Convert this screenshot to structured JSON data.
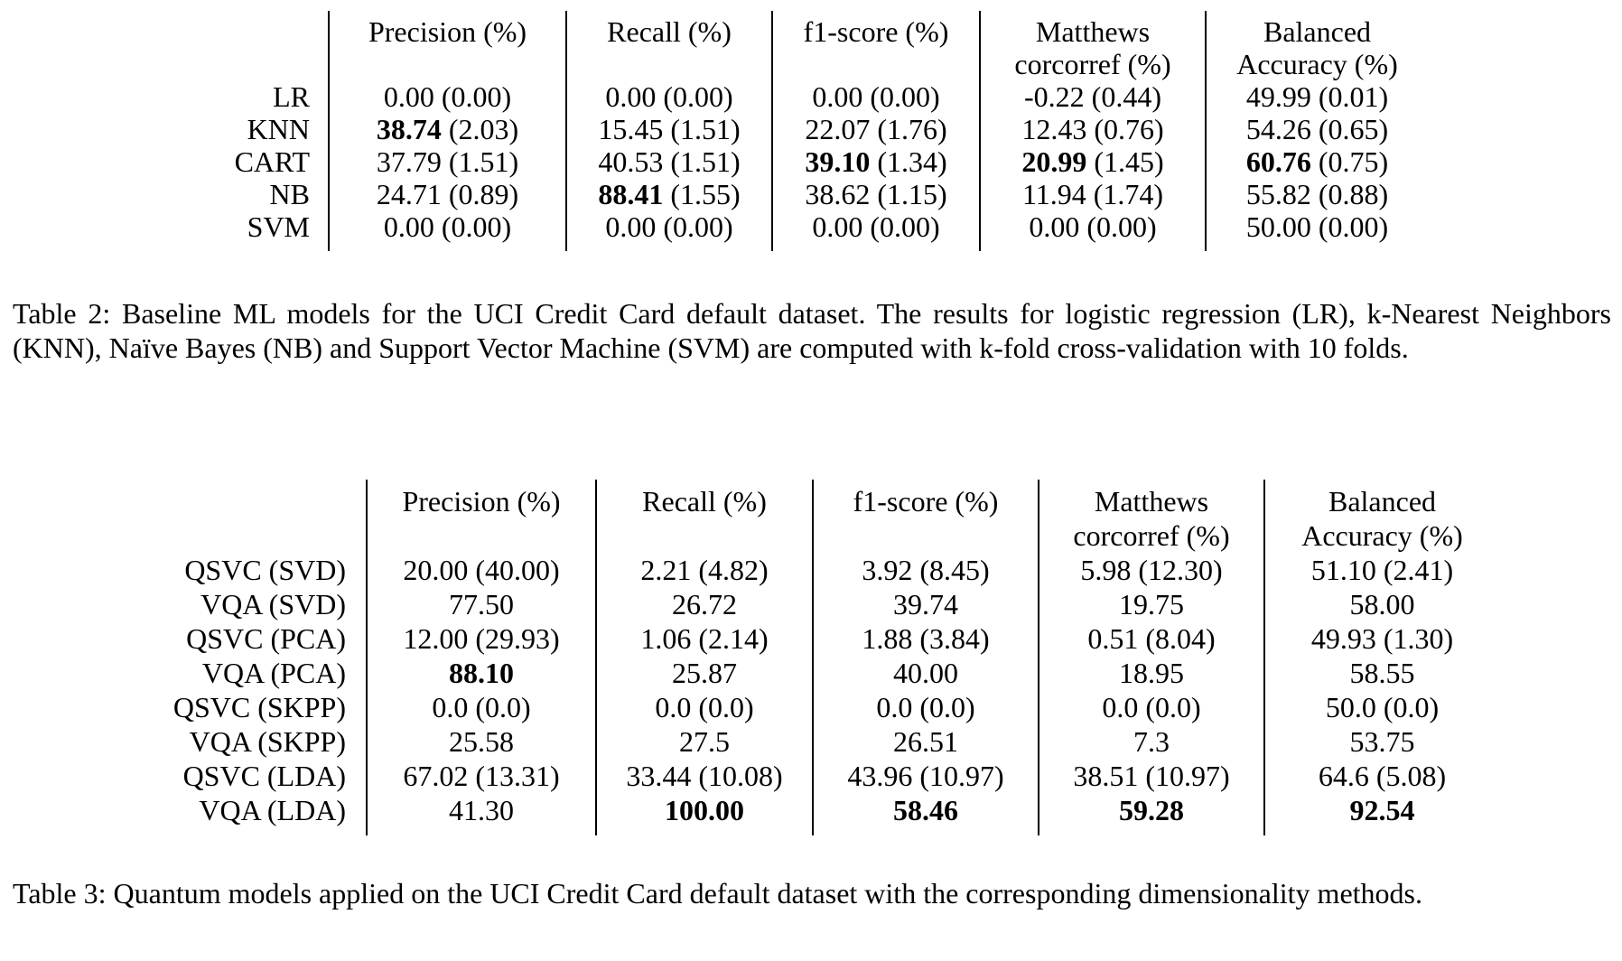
{
  "colors": {
    "background": "#ffffff",
    "text": "#000000",
    "rule": "#000000"
  },
  "tables": [
    {
      "name": "baseline-ml-models-table",
      "headers": [
        {
          "line1": "Precision (%)",
          "line2": ""
        },
        {
          "line1": "Recall (%)",
          "line2": ""
        },
        {
          "line1": "f1-score (%)",
          "line2": ""
        },
        {
          "line1": "Matthews",
          "line2": "corcorref (%)"
        },
        {
          "line1": "Balanced",
          "line2": "Accuracy (%)"
        }
      ],
      "rows": [
        {
          "label": "LR",
          "cells": [
            {
              "main": "0.00",
              "paren": "(0.00)",
              "bold": false
            },
            {
              "main": "0.00",
              "paren": "(0.00)",
              "bold": false
            },
            {
              "main": "0.00",
              "paren": "(0.00)",
              "bold": false
            },
            {
              "main": "-0.22",
              "paren": "(0.44)",
              "bold": false
            },
            {
              "main": "49.99",
              "paren": "(0.01)",
              "bold": false
            }
          ]
        },
        {
          "label": "KNN",
          "cells": [
            {
              "main": "38.74",
              "paren": "(2.03)",
              "bold": true
            },
            {
              "main": "15.45",
              "paren": "(1.51)",
              "bold": false
            },
            {
              "main": "22.07",
              "paren": "(1.76)",
              "bold": false
            },
            {
              "main": "12.43",
              "paren": "(0.76)",
              "bold": false
            },
            {
              "main": "54.26",
              "paren": "(0.65)",
              "bold": false
            }
          ]
        },
        {
          "label": "CART",
          "cells": [
            {
              "main": "37.79",
              "paren": "(1.51)",
              "bold": false
            },
            {
              "main": "40.53",
              "paren": "(1.51)",
              "bold": false
            },
            {
              "main": "39.10",
              "paren": "(1.34)",
              "bold": true
            },
            {
              "main": "20.99",
              "paren": "(1.45)",
              "bold": true
            },
            {
              "main": "60.76",
              "paren": "(0.75)",
              "bold": true
            }
          ]
        },
        {
          "label": "NB",
          "cells": [
            {
              "main": "24.71",
              "paren": "(0.89)",
              "bold": false
            },
            {
              "main": "88.41",
              "paren": "(1.55)",
              "bold": true
            },
            {
              "main": "38.62",
              "paren": "(1.15)",
              "bold": false
            },
            {
              "main": "11.94",
              "paren": "(1.74)",
              "bold": false
            },
            {
              "main": "55.82",
              "paren": "(0.88)",
              "bold": false
            }
          ]
        },
        {
          "label": "SVM",
          "cells": [
            {
              "main": "0.00",
              "paren": "(0.00)",
              "bold": false
            },
            {
              "main": "0.00",
              "paren": "(0.00)",
              "bold": false
            },
            {
              "main": "0.00",
              "paren": "(0.00)",
              "bold": false
            },
            {
              "main": "0.00",
              "paren": "(0.00)",
              "bold": false
            },
            {
              "main": "50.00",
              "paren": "(0.00)",
              "bold": false
            }
          ]
        }
      ],
      "caption": "Table 2: Baseline ML models for the UCI Credit Card default dataset. The results for logistic regression (LR), k-Nearest Neighbors (KNN), Naïve Bayes (NB) and Support Vector Machine (SVM) are computed with k-fold cross-validation with 10 folds."
    },
    {
      "name": "quantum-models-table",
      "headers": [
        {
          "line1": "Precision (%)",
          "line2": ""
        },
        {
          "line1": "Recall (%)",
          "line2": ""
        },
        {
          "line1": "f1-score (%)",
          "line2": ""
        },
        {
          "line1": "Matthews",
          "line2": "corcorref (%)"
        },
        {
          "line1": "Balanced",
          "line2": "Accuracy (%)"
        }
      ],
      "rows": [
        {
          "label": "QSVC (SVD)",
          "cells": [
            {
              "main": "20.00",
              "paren": "(40.00)",
              "bold": false
            },
            {
              "main": "2.21",
              "paren": "(4.82)",
              "bold": false
            },
            {
              "main": "3.92",
              "paren": "(8.45)",
              "bold": false
            },
            {
              "main": "5.98",
              "paren": "(12.30)",
              "bold": false
            },
            {
              "main": "51.10",
              "paren": "(2.41)",
              "bold": false
            }
          ]
        },
        {
          "label": "VQA (SVD)",
          "cells": [
            {
              "main": "77.50",
              "paren": "",
              "bold": false
            },
            {
              "main": "26.72",
              "paren": "",
              "bold": false
            },
            {
              "main": "39.74",
              "paren": "",
              "bold": false
            },
            {
              "main": "19.75",
              "paren": "",
              "bold": false
            },
            {
              "main": "58.00",
              "paren": "",
              "bold": false
            }
          ]
        },
        {
          "label": "QSVC (PCA)",
          "cells": [
            {
              "main": "12.00",
              "paren": "(29.93)",
              "bold": false
            },
            {
              "main": "1.06",
              "paren": "(2.14)",
              "bold": false
            },
            {
              "main": "1.88",
              "paren": "(3.84)",
              "bold": false
            },
            {
              "main": "0.51",
              "paren": "(8.04)",
              "bold": false
            },
            {
              "main": "49.93",
              "paren": "(1.30)",
              "bold": false
            }
          ]
        },
        {
          "label": "VQA (PCA)",
          "cells": [
            {
              "main": "88.10",
              "paren": "",
              "bold": true
            },
            {
              "main": "25.87",
              "paren": "",
              "bold": false
            },
            {
              "main": "40.00",
              "paren": "",
              "bold": false
            },
            {
              "main": "18.95",
              "paren": "",
              "bold": false
            },
            {
              "main": "58.55",
              "paren": "",
              "bold": false
            }
          ]
        },
        {
          "label": "QSVC (SKPP)",
          "cells": [
            {
              "main": "0.0",
              "paren": "(0.0)",
              "bold": false
            },
            {
              "main": "0.0",
              "paren": "(0.0)",
              "bold": false
            },
            {
              "main": "0.0",
              "paren": "(0.0)",
              "bold": false
            },
            {
              "main": "0.0",
              "paren": "(0.0)",
              "bold": false
            },
            {
              "main": "50.0",
              "paren": "(0.0)",
              "bold": false
            }
          ]
        },
        {
          "label": "VQA (SKPP)",
          "cells": [
            {
              "main": "25.58",
              "paren": "",
              "bold": false
            },
            {
              "main": "27.5",
              "paren": "",
              "bold": false
            },
            {
              "main": "26.51",
              "paren": "",
              "bold": false
            },
            {
              "main": "7.3",
              "paren": "",
              "bold": false
            },
            {
              "main": "53.75",
              "paren": "",
              "bold": false
            }
          ]
        },
        {
          "label": "QSVC (LDA)",
          "cells": [
            {
              "main": "67.02",
              "paren": "(13.31)",
              "bold": false
            },
            {
              "main": "33.44",
              "paren": "(10.08)",
              "bold": false
            },
            {
              "main": "43.96",
              "paren": "(10.97)",
              "bold": false
            },
            {
              "main": "38.51",
              "paren": "(10.97)",
              "bold": false
            },
            {
              "main": "64.6",
              "paren": "(5.08)",
              "bold": false
            }
          ]
        },
        {
          "label": "VQA (LDA)",
          "cells": [
            {
              "main": "41.30",
              "paren": "",
              "bold": false
            },
            {
              "main": "100.00",
              "paren": "",
              "bold": true
            },
            {
              "main": "58.46",
              "paren": "",
              "bold": true
            },
            {
              "main": "59.28",
              "paren": "",
              "bold": true
            },
            {
              "main": "92.54",
              "paren": "",
              "bold": true
            }
          ]
        }
      ],
      "caption": "Table 3: Quantum models applied on the UCI Credit Card default dataset with the corresponding dimensionality methods."
    }
  ]
}
